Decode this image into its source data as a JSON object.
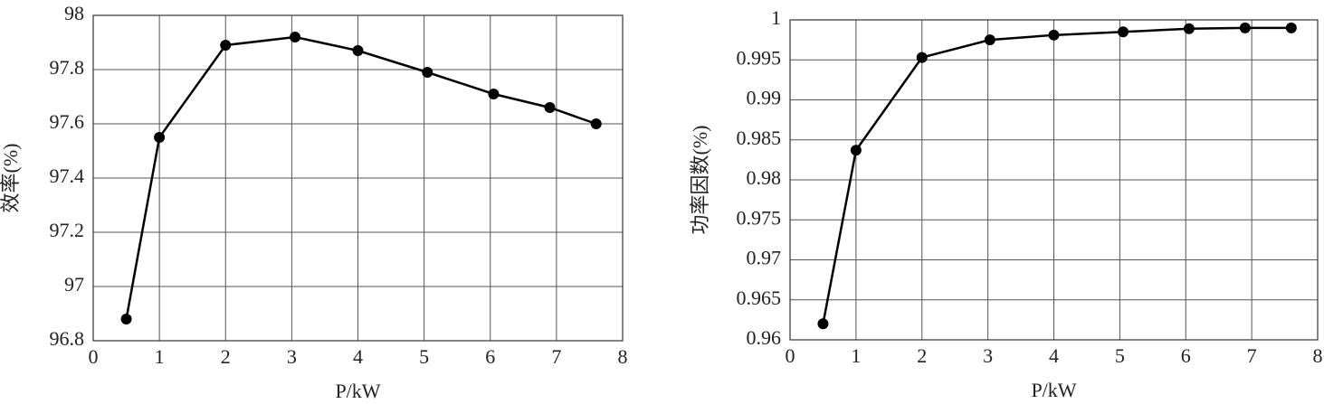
{
  "chart_data": [
    {
      "type": "line",
      "xlabel": "P/kW",
      "ylabel": "效率(%)",
      "x": [
        0.5,
        1.0,
        2.0,
        3.05,
        4.0,
        5.05,
        6.05,
        6.9,
        7.6
      ],
      "series": [
        {
          "color": "#000000",
          "values": [
            96.88,
            97.55,
            97.89,
            97.92,
            97.87,
            97.79,
            97.71,
            97.66,
            97.6
          ]
        }
      ],
      "xlim": [
        0,
        8
      ],
      "xticks": [
        0,
        1,
        2,
        3,
        4,
        5,
        6,
        7,
        8
      ],
      "ylim": [
        96.8,
        98
      ],
      "yticks": [
        96.8,
        97,
        97.2,
        97.4,
        97.6,
        97.8,
        98
      ],
      "grid": true
    },
    {
      "type": "line",
      "xlabel": "P/kW",
      "ylabel": "功率因数(%)",
      "x": [
        0.5,
        1.0,
        2.0,
        3.03,
        4.0,
        5.05,
        6.05,
        6.9,
        7.6
      ],
      "series": [
        {
          "color": "#000000",
          "values": [
            0.962,
            0.9837,
            0.9953,
            0.9975,
            0.9981,
            0.9985,
            0.9989,
            0.999,
            0.999
          ]
        }
      ],
      "xlim": [
        0,
        8
      ],
      "xticks": [
        0,
        1,
        2,
        3,
        4,
        5,
        6,
        7,
        8
      ],
      "ylim": [
        0.96,
        1
      ],
      "yticks": [
        0.96,
        0.965,
        0.97,
        0.975,
        0.98,
        0.985,
        0.99,
        0.995,
        1
      ],
      "grid": true
    }
  ]
}
